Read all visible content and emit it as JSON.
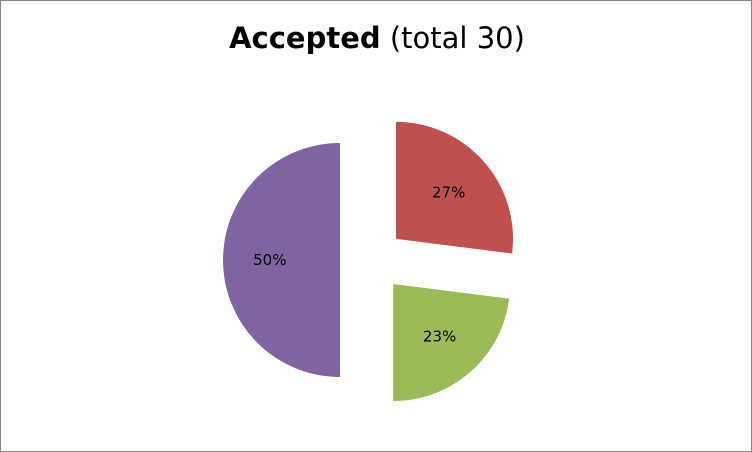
{
  "chart_data": {
    "type": "pie",
    "title_bold": "Accepted",
    "title_rest": "(total 30)",
    "exploded": true,
    "start_angle_deg": 0,
    "direction": "clockwise",
    "slices": [
      {
        "value": 27,
        "label": "27%",
        "color": "#C0504D"
      },
      {
        "value": 23,
        "label": "23%",
        "color": "#9BBB59"
      },
      {
        "value": 50,
        "label": "50%",
        "color": "#8064A2"
      }
    ],
    "legend": "none"
  }
}
